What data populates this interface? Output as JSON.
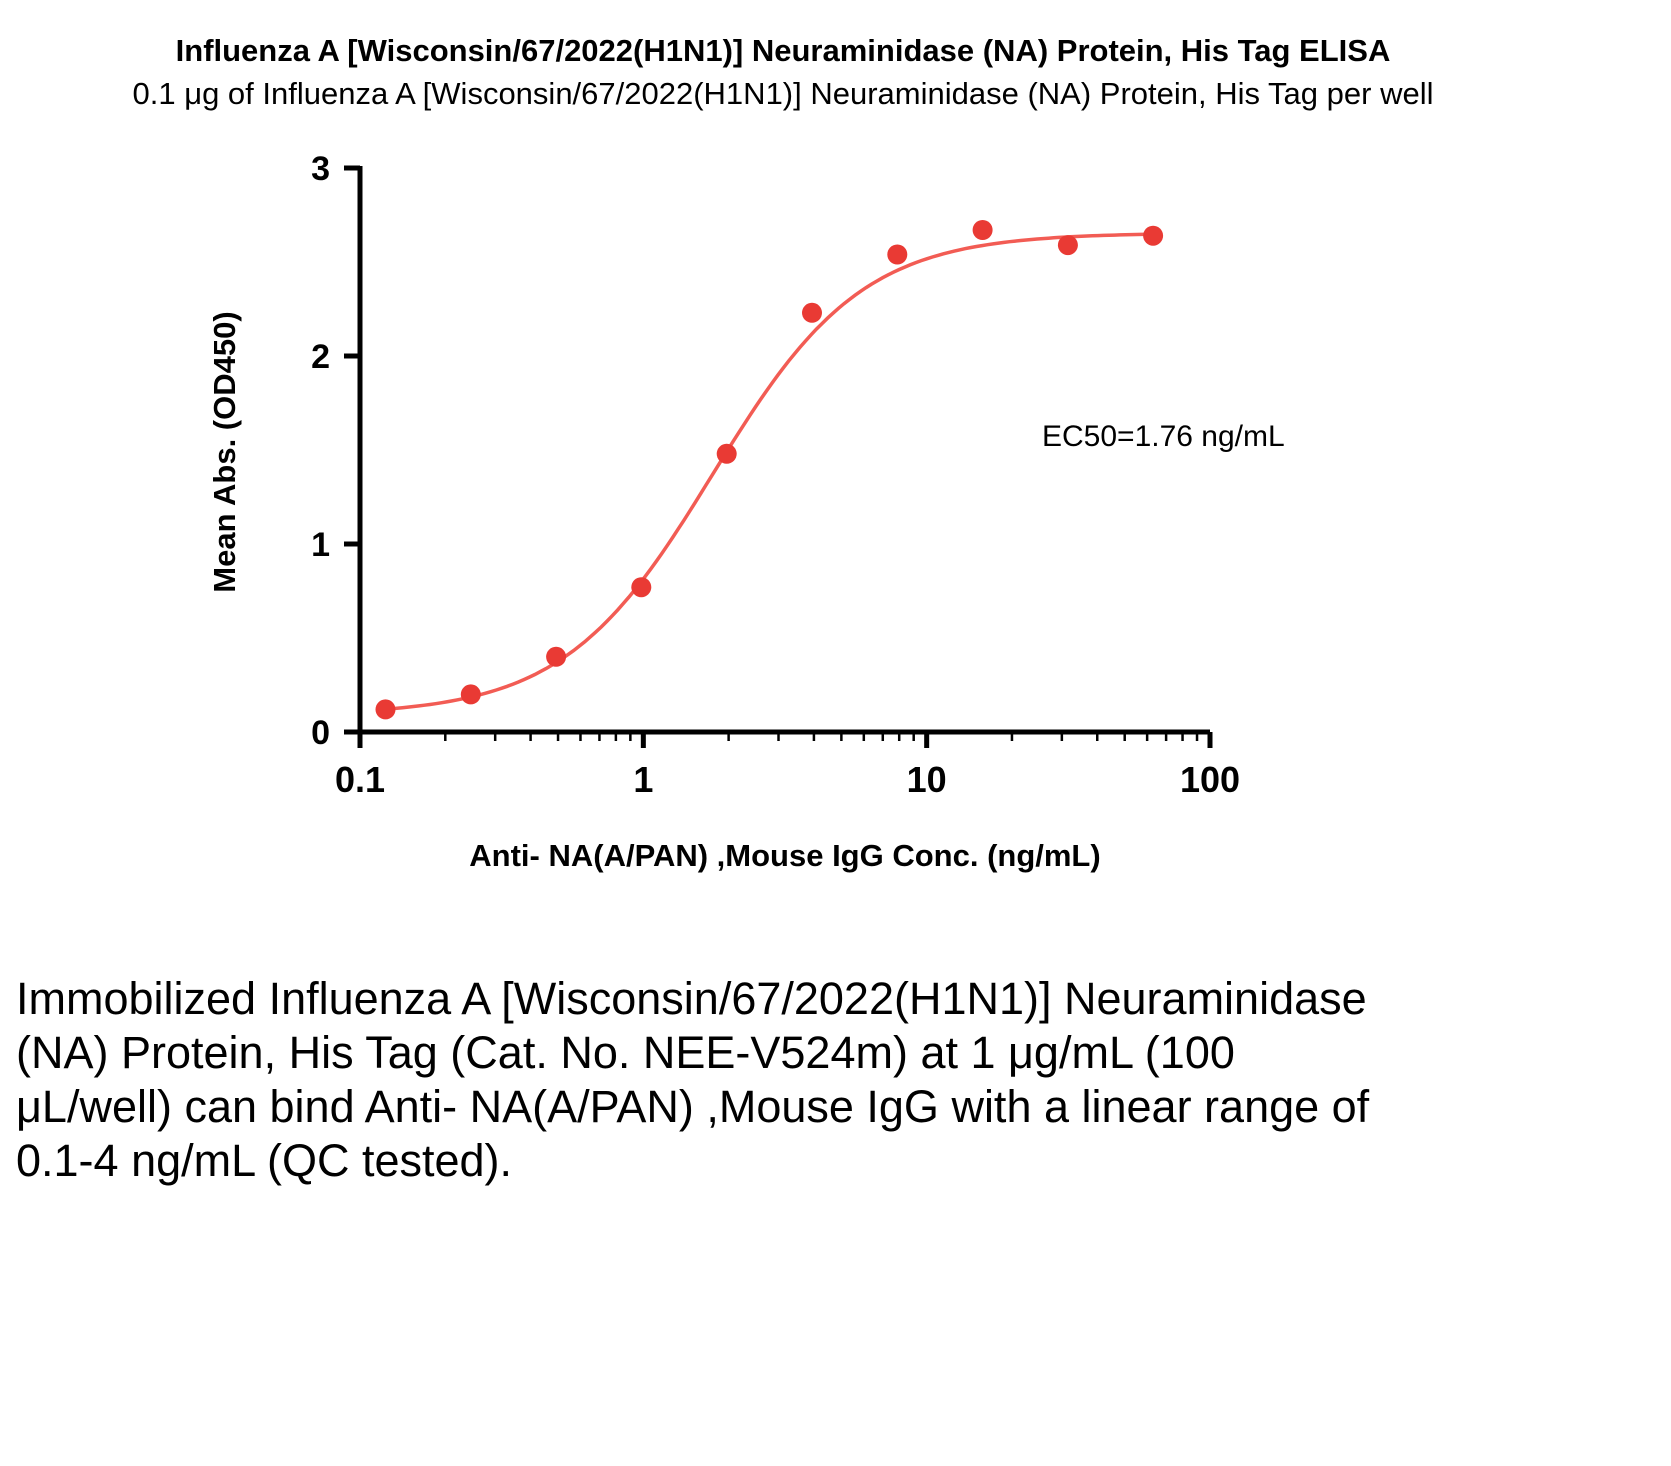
{
  "page": {
    "title": "Influenza A [Wisconsin/67/2022(H1N1)] Neuraminidase (NA) Protein, His Tag ELISA",
    "subtitle": "0.1 μg of Influenza A [Wisconsin/67/2022(H1N1)] Neuraminidase (NA) Protein, His Tag per well",
    "description": "Immobilized Influenza A [Wisconsin/67/2022(H1N1)] Neuraminidase (NA) Protein, His Tag (Cat. No. NEE-V524m) at 1 μg/mL (100 μL/well) can bind  Anti- NA(A/PAN) ,Mouse IgG with a linear range of 0.1-4 ng/mL (QC tested)."
  },
  "chart_data": {
    "type": "scatter",
    "title": "Influenza A [Wisconsin/67/2022(H1N1)] Neuraminidase (NA) Protein, His Tag ELISA",
    "subtitle": "0.1 μg of Influenza A [Wisconsin/67/2022(H1N1)] Neuraminidase (NA) Protein, His Tag per well",
    "xlabel": "Anti- NA(A/PAN) ,Mouse IgG Conc. (ng/mL)",
    "ylabel": "Mean Abs. (OD450)",
    "x_scale": "log10",
    "xlim": [
      0.1,
      100
    ],
    "ylim": [
      0,
      3
    ],
    "x_ticks": [
      0.1,
      1,
      10,
      100
    ],
    "x_tick_labels": [
      "0.1",
      "1",
      "10",
      "100"
    ],
    "y_ticks": [
      0,
      1,
      2,
      3
    ],
    "grid": false,
    "legend": "none",
    "annotation": "EC50=1.76 ng/mL",
    "ec50_ng_ml": 1.76,
    "points": {
      "x": [
        0.123,
        0.246,
        0.492,
        0.984,
        1.969,
        3.938,
        7.875,
        15.75,
        31.5,
        63
      ],
      "y": [
        0.12,
        0.2,
        0.4,
        0.77,
        1.48,
        2.23,
        2.54,
        2.67,
        2.59,
        2.64
      ]
    },
    "fit": {
      "model": "4PL sigmoidal",
      "bottom": 0.09,
      "top": 2.655,
      "ec50_ng_ml": 1.76,
      "hill": 1.65,
      "x_start": 0.118,
      "x_end": 63
    },
    "colors": {
      "point": "#e93a34",
      "curve": "#f25c54",
      "axis": "#000000",
      "text": "#000000",
      "background": "#ffffff"
    }
  }
}
